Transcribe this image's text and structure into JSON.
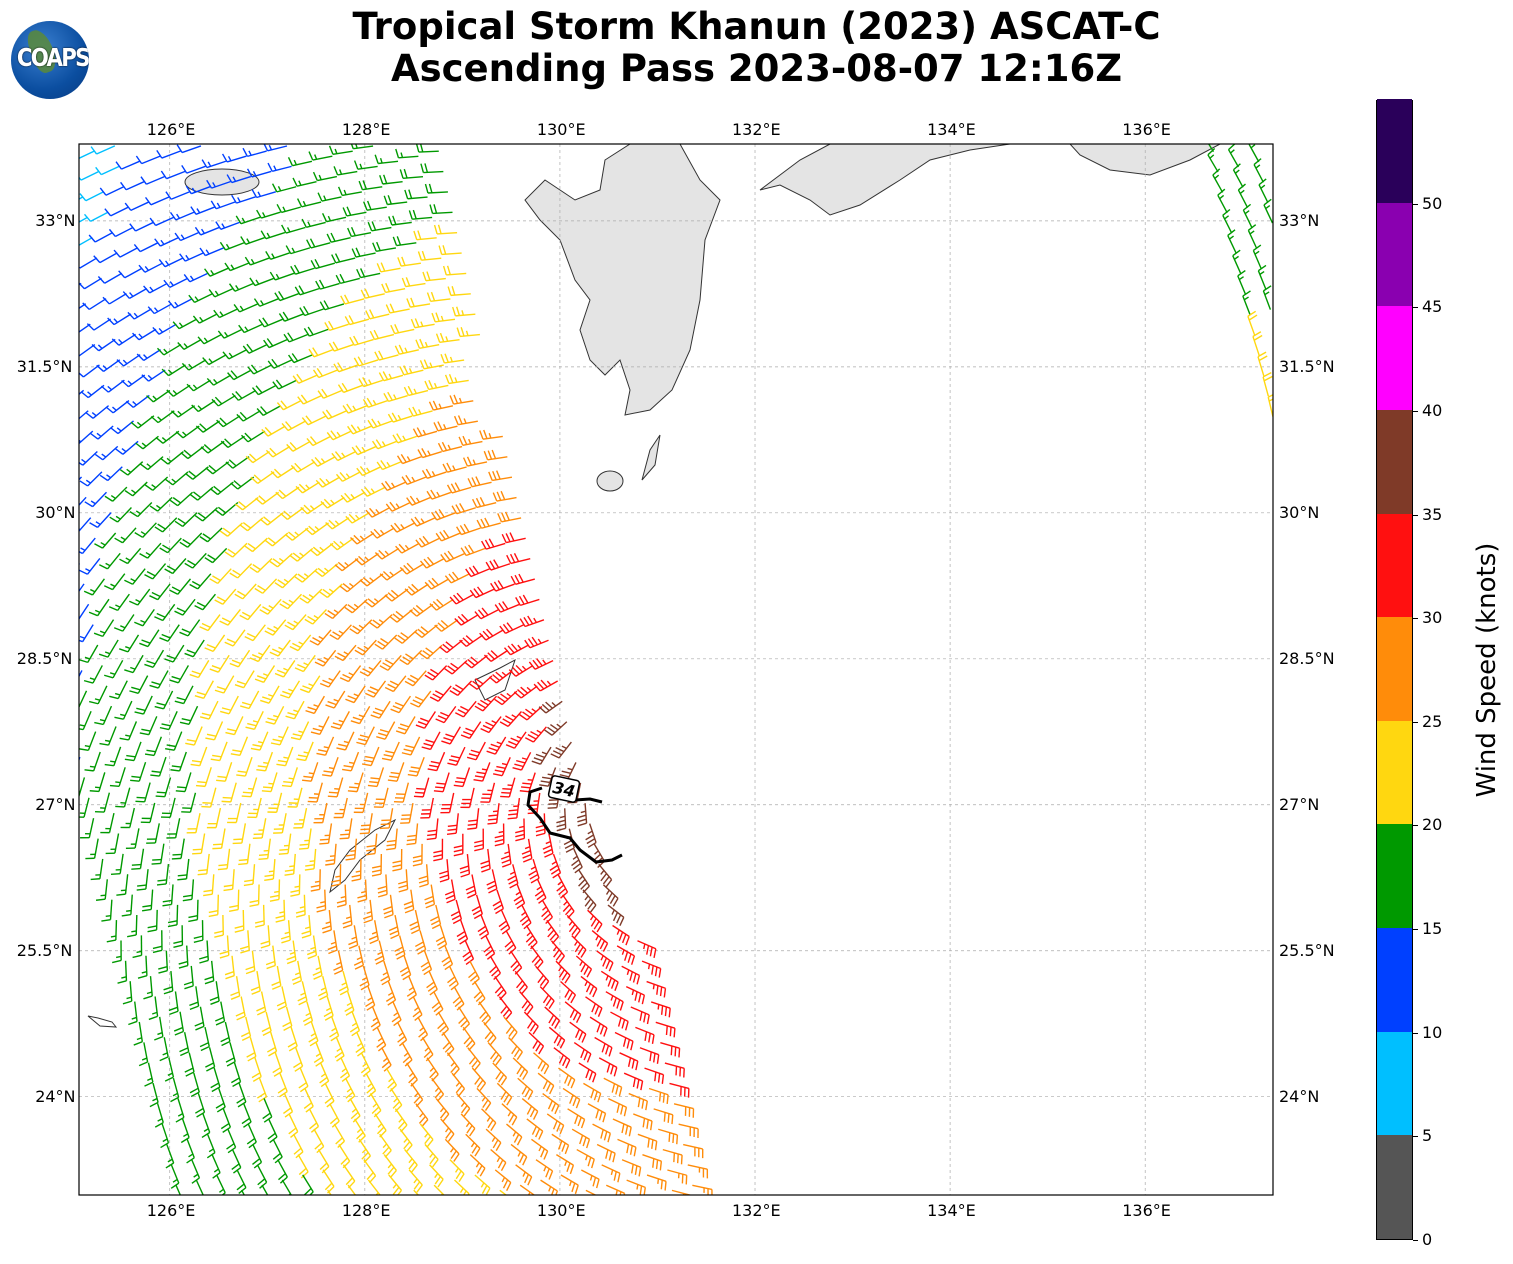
{
  "title": {
    "line1": "Tropical Storm Khanun (2023) ASCAT-C",
    "line2": "Ascending Pass 2023-08-07 12:16Z"
  },
  "logo": {
    "text": "COAPS"
  },
  "chart_data": {
    "type": "wind-barb-map",
    "extent": {
      "lon": [
        125.07,
        137.31
      ],
      "lat": [
        22.99,
        33.79
      ]
    },
    "lon_ticks": [
      {
        "v": 126,
        "label": "126°E"
      },
      {
        "v": 128,
        "label": "128°E"
      },
      {
        "v": 130,
        "label": "130°E"
      },
      {
        "v": 132,
        "label": "132°E"
      },
      {
        "v": 134,
        "label": "134°E"
      },
      {
        "v": 136,
        "label": "136°E"
      }
    ],
    "lat_ticks": [
      {
        "v": 33,
        "label": "33°N"
      },
      {
        "v": 31.5,
        "label": "31.5°N"
      },
      {
        "v": 30,
        "label": "30°N"
      },
      {
        "v": 28.5,
        "label": "28.5°N"
      },
      {
        "v": 27,
        "label": "27°N"
      },
      {
        "v": 25.5,
        "label": "25.5°N"
      },
      {
        "v": 24,
        "label": "24°N"
      }
    ],
    "grid": true,
    "storm_center": {
      "lon": 131.0,
      "lat": 27.3
    },
    "contour": {
      "label": "34",
      "lon": 130.05,
      "lat": 27.17
    },
    "colorbar": {
      "label": "Wind Speed (knots)",
      "levels": [
        0,
        5,
        10,
        15,
        20,
        25,
        30,
        35,
        40,
        45,
        50,
        55
      ],
      "tick_labels": [
        "0",
        "5",
        "10",
        "15",
        "20",
        "25",
        "30",
        "35",
        "40",
        "45",
        "50"
      ],
      "colors": [
        "#555555",
        "#00bfff",
        "#0040ff",
        "#009900",
        "#ffd710",
        "#ff8c0a",
        "#ff1010",
        "#7f3a28",
        "#ff00ff",
        "#8a00b0",
        "#2a005a"
      ]
    }
  }
}
